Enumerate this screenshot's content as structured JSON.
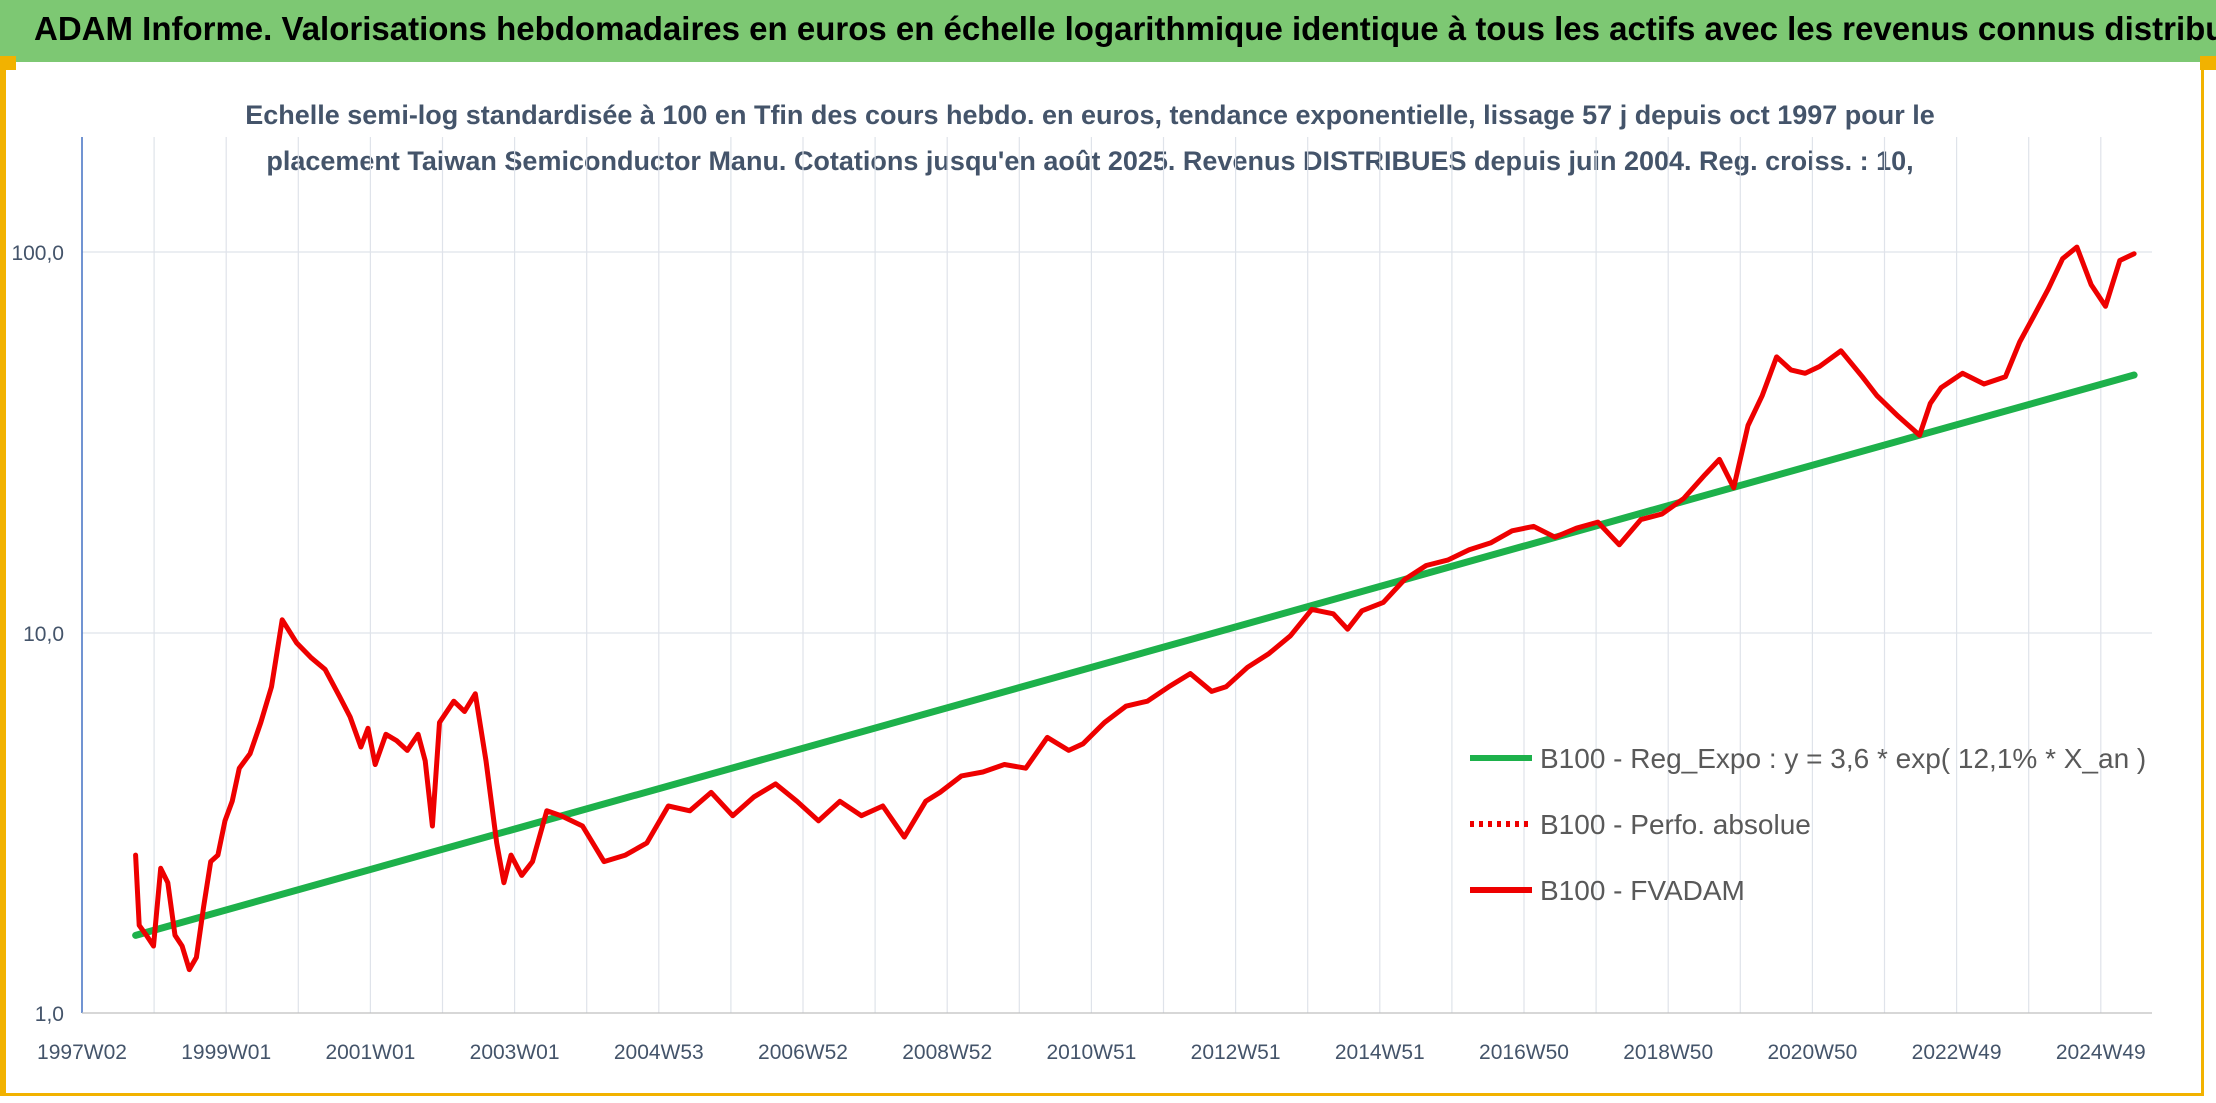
{
  "header": {
    "title": "ADAM Informe. Valorisations hebdomadaires en euros en échelle logarithmique identique à tous les actifs avec les revenus connus distribués"
  },
  "colors": {
    "header_bg": "#7dc873",
    "frame": "#f2b200",
    "trend": "#1db14b",
    "fvadam": "#ee0000",
    "perfo": "#ee0000"
  },
  "chart_data": {
    "type": "line",
    "title_line1": "Echelle semi-log standardisée à 100 en Tfin des cours hebdo. en euros, tendance exponentielle, lissage 57 j depuis oct 1997 pour le",
    "title_line2": "placement Taiwan Semiconductor Manu. Cotations jusqu'en août 2025. Revenus DISTRIBUES depuis juin 2004. Reg. croiss. : 10,",
    "y_scale": "log",
    "ylim": [
      1,
      100
    ],
    "y_ticks": [
      "1,0",
      "10,0",
      "100,0"
    ],
    "x_tick_labels": [
      "1997W02",
      "1999W01",
      "2001W01",
      "2003W01",
      "2004W53",
      "2006W52",
      "2008W52",
      "2010W51",
      "2012W51",
      "2014W51",
      "2016W50",
      "2018W50",
      "2020W50",
      "2022W49",
      "2024W49"
    ],
    "x_range": [
      1997.0,
      2025.95
    ],
    "grid": true,
    "legend_position": "right",
    "series": [
      {
        "name": "B100 - Reg_Expo : y = 3,6 * exp( 12,1% *  X_an )",
        "style": "solid-green",
        "x": [
          1997.75,
          2025.7
        ],
        "y": [
          1.6,
          47.5
        ]
      },
      {
        "name": "B100 - Perfo. absolue",
        "style": "dotted-red",
        "x": [],
        "y": []
      },
      {
        "name": "B100 - FVADAM",
        "style": "solid-red",
        "x": [
          1997.75,
          1997.8,
          1997.9,
          1998.0,
          1998.1,
          1998.2,
          1998.3,
          1998.4,
          1998.5,
          1998.6,
          1998.7,
          1998.8,
          1998.9,
          1999.0,
          1999.1,
          1999.2,
          1999.35,
          1999.5,
          1999.65,
          1999.8,
          2000.0,
          2000.2,
          2000.4,
          2000.6,
          2000.75,
          2000.9,
          2001.0,
          2001.1,
          2001.25,
          2001.4,
          2001.55,
          2001.7,
          2001.8,
          2001.9,
          2002.0,
          2002.2,
          2002.35,
          2002.5,
          2002.65,
          2002.8,
          2002.9,
          2003.0,
          2003.15,
          2003.3,
          2003.5,
          2003.7,
          2004.0,
          2004.3,
          2004.6,
          2004.9,
          2005.2,
          2005.5,
          2005.8,
          2006.1,
          2006.4,
          2006.7,
          2007.0,
          2007.3,
          2007.6,
          2007.9,
          2008.2,
          2008.5,
          2008.8,
          2009.0,
          2009.3,
          2009.6,
          2009.9,
          2010.2,
          2010.5,
          2010.8,
          2011.0,
          2011.3,
          2011.6,
          2011.9,
          2012.2,
          2012.5,
          2012.8,
          2013.0,
          2013.3,
          2013.6,
          2013.9,
          2014.2,
          2014.5,
          2014.7,
          2014.9,
          2015.2,
          2015.5,
          2015.8,
          2016.1,
          2016.4,
          2016.7,
          2017.0,
          2017.3,
          2017.6,
          2017.9,
          2018.2,
          2018.5,
          2018.8,
          2019.1,
          2019.4,
          2019.7,
          2019.9,
          2020.1,
          2020.3,
          2020.5,
          2020.7,
          2020.9,
          2021.1,
          2021.3,
          2021.6,
          2021.9,
          2022.1,
          2022.4,
          2022.7,
          2022.85,
          2023.0,
          2023.3,
          2023.6,
          2023.9,
          2024.1,
          2024.3,
          2024.5,
          2024.7,
          2024.9,
          2025.1,
          2025.3,
          2025.5,
          2025.7
        ],
        "y": [
          2.6,
          1.7,
          1.6,
          1.5,
          2.4,
          2.2,
          1.6,
          1.5,
          1.3,
          1.4,
          1.9,
          2.5,
          2.6,
          3.2,
          3.6,
          4.4,
          4.8,
          5.8,
          7.2,
          10.8,
          9.4,
          8.6,
          8.0,
          6.8,
          6.0,
          5.0,
          5.6,
          4.5,
          5.4,
          5.2,
          4.9,
          5.4,
          4.6,
          3.1,
          5.8,
          6.6,
          6.2,
          6.9,
          4.6,
          2.8,
          2.2,
          2.6,
          2.3,
          2.5,
          3.4,
          3.3,
          3.1,
          2.5,
          2.6,
          2.8,
          3.5,
          3.4,
          3.8,
          3.3,
          3.7,
          4.0,
          3.6,
          3.2,
          3.6,
          3.3,
          3.5,
          2.9,
          3.6,
          3.8,
          4.2,
          4.3,
          4.5,
          4.4,
          5.3,
          4.9,
          5.1,
          5.8,
          6.4,
          6.6,
          7.2,
          7.8,
          7.0,
          7.2,
          8.1,
          8.8,
          9.8,
          11.5,
          11.2,
          10.2,
          11.4,
          12.0,
          13.8,
          15.0,
          15.5,
          16.5,
          17.2,
          18.5,
          19.0,
          17.8,
          18.8,
          19.5,
          17.0,
          19.8,
          20.5,
          22.5,
          26.0,
          28.5,
          24.0,
          35.0,
          42.0,
          53.0,
          49.0,
          48.0,
          50.0,
          55.0,
          47.0,
          42.0,
          37.0,
          33.0,
          40.0,
          44.0,
          48.0,
          45.0,
          47.0,
          58.0,
          68.0,
          80.0,
          96.0,
          103.0,
          82.0,
          72.0,
          95.0,
          99.0
        ]
      }
    ]
  }
}
